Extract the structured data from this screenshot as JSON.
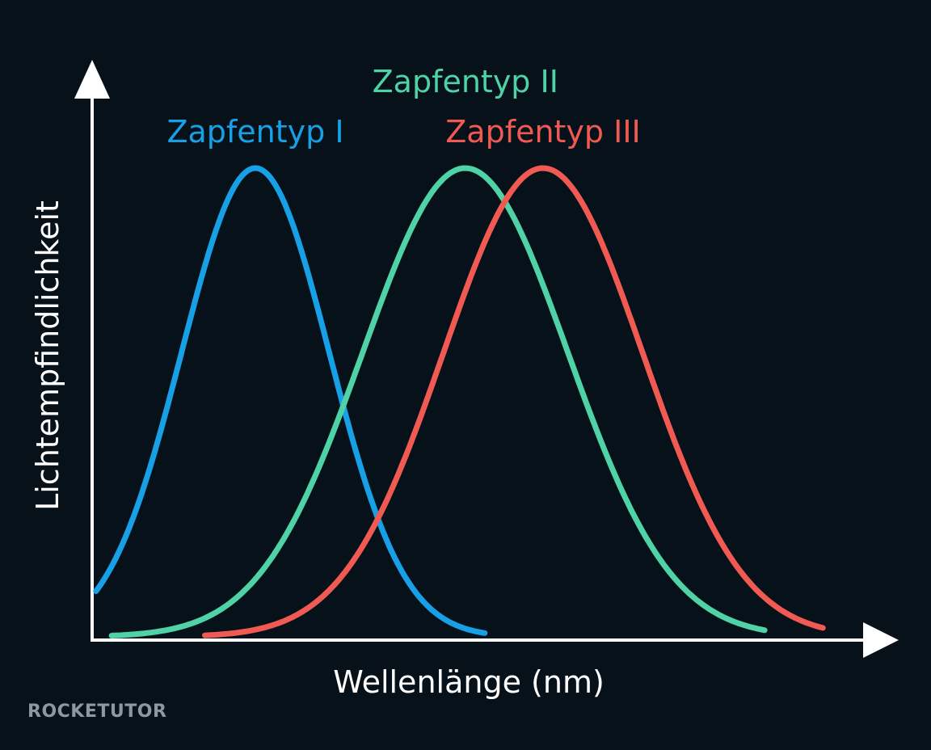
{
  "chart_data": {
    "type": "line",
    "title": "",
    "xlabel": "Wellenlänge (nm)",
    "ylabel": "Lichtempfindlichkeit",
    "xlim": [
      0,
      100
    ],
    "ylim": [
      0,
      1.1
    ],
    "grid": false,
    "legend": "inline labels above peaks",
    "series": [
      {
        "name": "Zapfentyp I",
        "color": "#18a0e6",
        "peak": 21,
        "width": 9.5,
        "x_start": 0.5,
        "x_end": 50.5
      },
      {
        "name": "Zapfentyp II",
        "color": "#4fd3a6",
        "peak": 48,
        "width": 13.2,
        "x_start": 2.5,
        "x_end": 86.5
      },
      {
        "name": "Zapfentyp III",
        "color": "#f05a52",
        "peak": 58,
        "width": 12.8,
        "x_start": 14.5,
        "x_end": 94
      }
    ]
  },
  "watermark": "ROCKETUTOR"
}
